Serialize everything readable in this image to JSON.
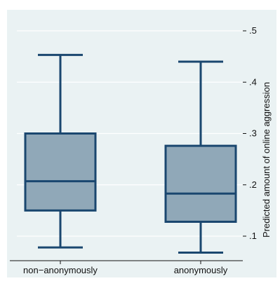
{
  "chart_data": {
    "type": "boxplot",
    "title": "",
    "xlabel": "",
    "ylabel": "Predicted amount of online aggression",
    "y_axis_position": "right",
    "ylim": [
      0.05,
      0.52
    ],
    "yticks": [
      0.1,
      0.2,
      0.3,
      0.4,
      0.5
    ],
    "ytick_labels": [
      ".1",
      ".2",
      ".3",
      ".4",
      ".5"
    ],
    "grid": true,
    "categories": [
      "non−anonymously",
      "anonymously"
    ],
    "boxes": [
      {
        "category": "non−anonymously",
        "whisker_low": 0.078,
        "q1": 0.15,
        "median": 0.207,
        "q3": 0.3,
        "whisker_high": 0.453
      },
      {
        "category": "anonymously",
        "whisker_low": 0.068,
        "q1": 0.128,
        "median": 0.183,
        "q3": 0.276,
        "whisker_high": 0.44
      }
    ],
    "colors": {
      "plot_background": "#eaf2f3",
      "outer_background": "#ffffff",
      "box_fill": "#90a8b8",
      "box_edge": "#1a476f",
      "grid": "#ffffff"
    }
  }
}
